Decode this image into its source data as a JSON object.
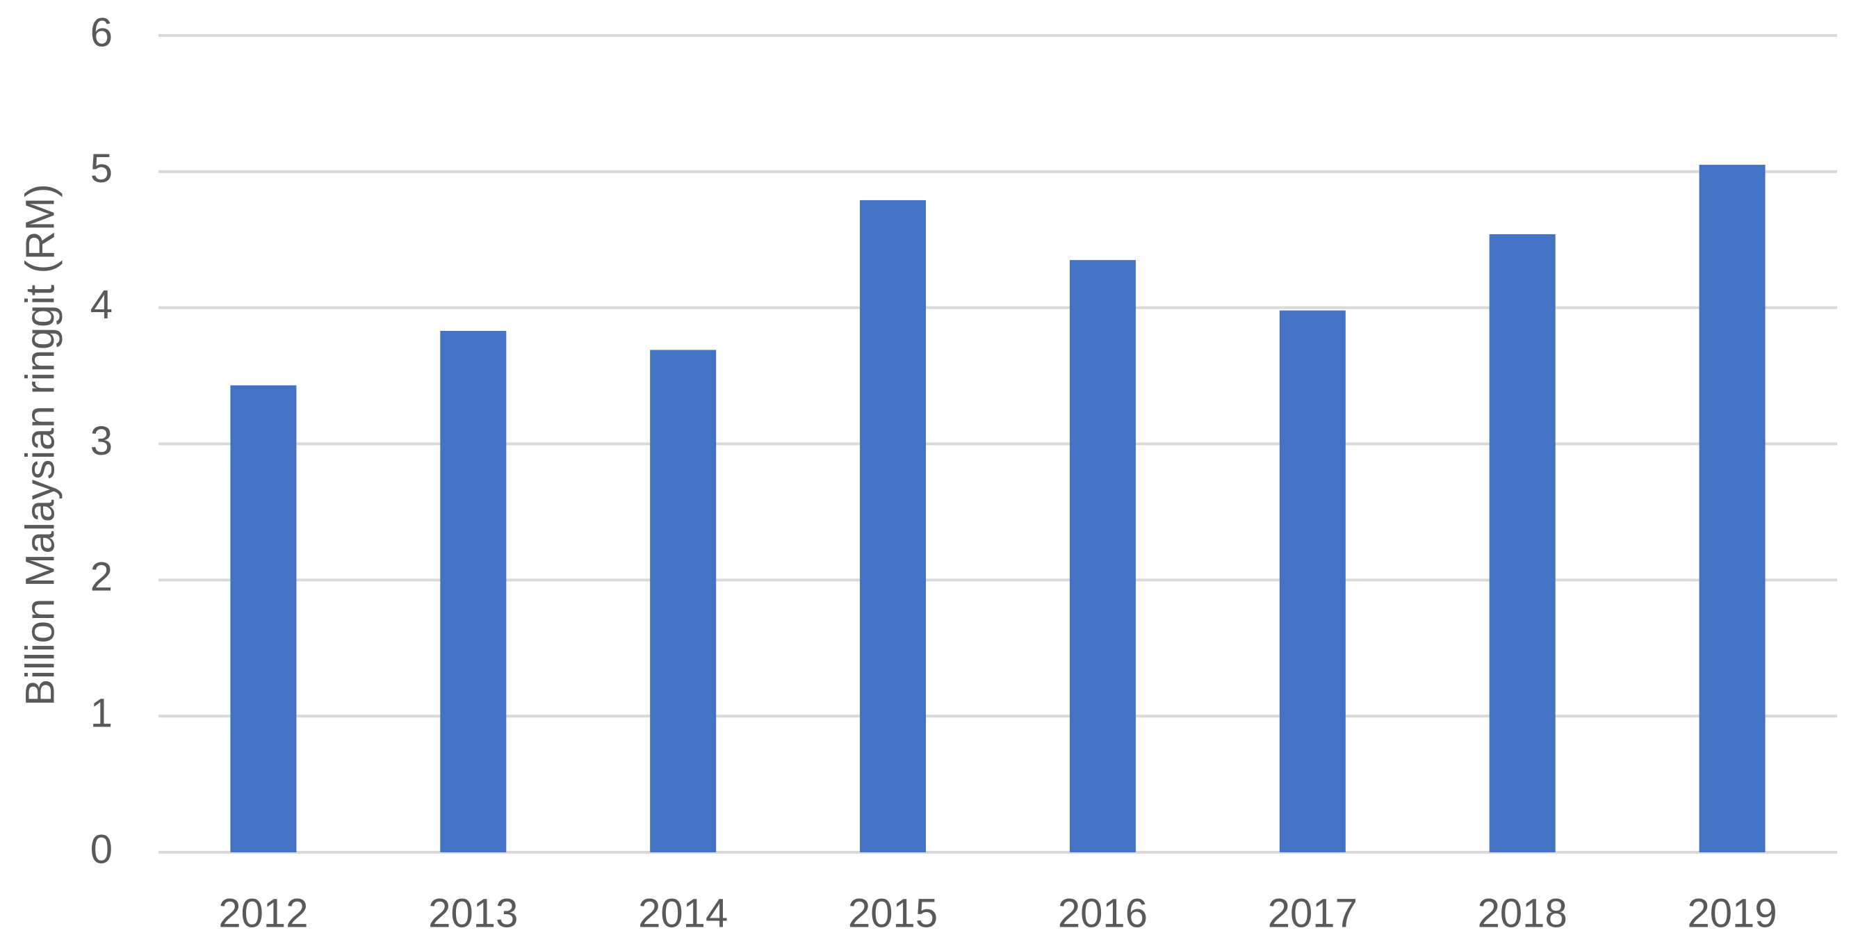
{
  "chart_data": {
    "type": "bar",
    "y_label": "Billion Malaysian ringgit (RM)",
    "categories": [
      "2012",
      "2013",
      "2014",
      "2015",
      "2016",
      "2017",
      "2018",
      "2019"
    ],
    "values": [
      3.43,
      3.83,
      3.69,
      4.79,
      4.35,
      3.98,
      4.54,
      5.05
    ],
    "color": "#4472c4",
    "ylim": [
      0,
      6
    ],
    "yticks": [
      0,
      1,
      2,
      3,
      4,
      5,
      6
    ],
    "grid": true
  }
}
